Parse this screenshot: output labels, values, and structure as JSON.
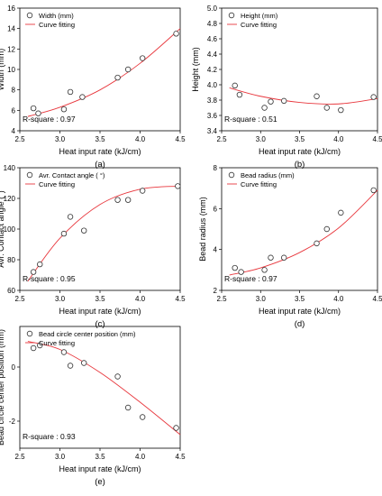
{
  "colors": {
    "curve": "#e8373d",
    "marker": "#333333"
  },
  "chart_data": [
    {
      "type": "scatter",
      "panel": "(a)",
      "xlabel": "Heat input rate (kJ/cm)",
      "ylabel": "Width (mm)",
      "xlim": [
        2.5,
        4.5
      ],
      "ylim": [
        4,
        16
      ],
      "xticks": [
        "2.5",
        "3.0",
        "3.5",
        "4.0",
        "4.5"
      ],
      "yticks": [
        "4",
        "6",
        "8",
        "10",
        "12",
        "14",
        "16"
      ],
      "legend": [
        "Width (mm)",
        "Curve fitting"
      ],
      "legend_position": "top-left",
      "annotation": "R-square : 0.97",
      "x": [
        2.67,
        2.73,
        3.05,
        3.13,
        3.28,
        3.72,
        3.85,
        4.03,
        4.45
      ],
      "y": [
        6.2,
        5.7,
        6.1,
        7.8,
        7.3,
        9.2,
        10.0,
        11.1,
        13.5
      ],
      "fit": {
        "x": [
          2.6,
          3.0,
          3.5,
          4.0,
          4.5
        ],
        "y": [
          5.4,
          6.3,
          8.0,
          10.6,
          14.0
        ]
      }
    },
    {
      "type": "scatter",
      "panel": "(b)",
      "xlabel": "Heat input rate (kJ/cm)",
      "ylabel": "Height (mm)",
      "xlim": [
        2.5,
        4.5
      ],
      "ylim": [
        3.4,
        5.0
      ],
      "xticks": [
        "2.5",
        "3.0",
        "3.5",
        "4.0",
        "4.5"
      ],
      "yticks": [
        "3.4",
        "3.6",
        "3.8",
        "4.0",
        "4.2",
        "4.4",
        "4.6",
        "4.8",
        "5.0"
      ],
      "legend": [
        "Height (mm)",
        "Curve fitting"
      ],
      "legend_position": "top-left",
      "annotation": "R-square : 0.51",
      "x": [
        2.67,
        2.73,
        3.05,
        3.13,
        3.3,
        3.72,
        3.85,
        4.03,
        4.45
      ],
      "y": [
        3.99,
        3.87,
        3.7,
        3.78,
        3.79,
        3.85,
        3.7,
        3.67,
        3.84
      ],
      "fit": {
        "x": [
          2.6,
          3.0,
          3.5,
          4.0,
          4.5
        ],
        "y": [
          3.96,
          3.85,
          3.77,
          3.75,
          3.82
        ]
      }
    },
    {
      "type": "scatter",
      "panel": "(c)",
      "xlabel": "Heat input rate (kJ/cm)",
      "ylabel": "Avr. Contact angle (°)",
      "xlim": [
        2.5,
        4.5
      ],
      "ylim": [
        60,
        140
      ],
      "xticks": [
        "2.5",
        "3.0",
        "3.5",
        "4.0",
        "4.5"
      ],
      "yticks": [
        "60",
        "80",
        "100",
        "120",
        "140"
      ],
      "legend": [
        "Avr. Contact angle ( °)",
        "Curve fitting"
      ],
      "legend_position": "top-left",
      "annotation": "R-square : 0.95",
      "x": [
        2.67,
        2.75,
        3.05,
        3.13,
        3.3,
        3.72,
        3.85,
        4.03,
        4.47
      ],
      "y": [
        72,
        77,
        97,
        108,
        99,
        119,
        119,
        125,
        128
      ],
      "fit": {
        "x": [
          2.6,
          3.0,
          3.5,
          4.0,
          4.5
        ],
        "y": [
          66,
          94,
          116,
          126,
          128
        ]
      }
    },
    {
      "type": "scatter",
      "panel": "(d)",
      "xlabel": "Heat input rate (kJ/cm)",
      "ylabel": "Bead radius (mm)",
      "xlim": [
        2.5,
        4.5
      ],
      "ylim": [
        2,
        8
      ],
      "xticks": [
        "2.5",
        "3.0",
        "3.5",
        "4.0",
        "4.5"
      ],
      "yticks": [
        "2",
        "4",
        "6",
        "8"
      ],
      "legend": [
        "Bead radius (mm)",
        "Curve fitting"
      ],
      "legend_position": "top-left",
      "annotation": "R-square : 0.97",
      "x": [
        2.67,
        2.75,
        3.05,
        3.13,
        3.3,
        3.72,
        3.85,
        4.03,
        4.45
      ],
      "y": [
        3.1,
        2.9,
        3.0,
        3.6,
        3.6,
        4.3,
        5.0,
        5.8,
        6.9
      ],
      "fit": {
        "x": [
          2.6,
          3.0,
          3.5,
          4.0,
          4.5
        ],
        "y": [
          2.75,
          3.1,
          3.85,
          5.05,
          6.9
        ]
      }
    },
    {
      "type": "scatter",
      "panel": "(e)",
      "xlabel": "Heat input rate (kJ/cm)",
      "ylabel": "Bead circle center position (mm)",
      "xlim": [
        2.5,
        4.5
      ],
      "ylim": [
        -3,
        1.5
      ],
      "xticks": [
        "2.5",
        "3.0",
        "3.5",
        "4.0",
        "4.5"
      ],
      "yticks": [
        "-2",
        "0"
      ],
      "legend": [
        "Bead circle center position (mm)",
        "Curve fitting"
      ],
      "legend_position": "top-left",
      "annotation": "R-square : 0.93",
      "x": [
        2.67,
        2.75,
        3.05,
        3.13,
        3.3,
        3.72,
        3.85,
        4.03,
        4.45
      ],
      "y": [
        0.7,
        0.8,
        0.55,
        0.05,
        0.15,
        -0.35,
        -1.5,
        -1.85,
        -2.25
      ],
      "fit": {
        "x": [
          2.6,
          3.0,
          3.5,
          4.0,
          4.5
        ],
        "y": [
          0.95,
          0.65,
          -0.2,
          -1.3,
          -2.5
        ]
      }
    }
  ]
}
